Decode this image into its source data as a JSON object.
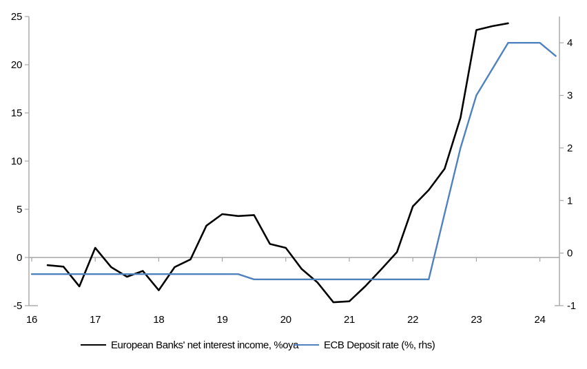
{
  "chart_data": {
    "type": "line",
    "title": "",
    "legend_position": "bottom",
    "grid": "zero-line-only",
    "background": "#ffffff",
    "x_axis": {
      "range": [
        15.96,
        24.31
      ],
      "ticks": [
        16,
        17,
        18,
        19,
        20,
        21,
        22,
        23,
        24
      ],
      "labels": [
        "16",
        "17",
        "18",
        "19",
        "20",
        "21",
        "22",
        "23",
        "24"
      ]
    },
    "left_axis": {
      "range": [
        -5,
        25
      ],
      "ticks": [
        -5,
        0,
        5,
        10,
        15,
        20,
        25
      ],
      "labels": [
        "-5",
        "0",
        "5",
        "10",
        "15",
        "20",
        "25"
      ]
    },
    "right_axis": {
      "range": [
        -1,
        4.5
      ],
      "ticks": [
        -1,
        0,
        1,
        2,
        3,
        4
      ],
      "labels": [
        "-1",
        "0",
        "1",
        "2",
        "3",
        "4"
      ]
    },
    "series": [
      {
        "name": "European Banks' net interest income, %oya",
        "axis": "left",
        "color": "#000000",
        "stroke_width": 2.6,
        "points": [
          [
            16.25,
            -0.8
          ],
          [
            16.5,
            -0.95
          ],
          [
            16.75,
            -3.0
          ],
          [
            17.0,
            1.0
          ],
          [
            17.25,
            -1.0
          ],
          [
            17.5,
            -2.0
          ],
          [
            17.75,
            -1.4
          ],
          [
            18.0,
            -3.4
          ],
          [
            18.25,
            -1.0
          ],
          [
            18.5,
            -0.2
          ],
          [
            18.75,
            3.3
          ],
          [
            19.0,
            4.5
          ],
          [
            19.25,
            4.3
          ],
          [
            19.5,
            4.4
          ],
          [
            19.75,
            1.4
          ],
          [
            20.0,
            1.0
          ],
          [
            20.25,
            -1.2
          ],
          [
            20.5,
            -2.6
          ],
          [
            20.75,
            -4.65
          ],
          [
            21.0,
            -4.55
          ],
          [
            21.25,
            -3.0
          ],
          [
            21.5,
            -1.25
          ],
          [
            21.75,
            0.55
          ],
          [
            22.0,
            5.3
          ],
          [
            22.25,
            7.0
          ],
          [
            22.5,
            9.2
          ],
          [
            22.75,
            14.5
          ],
          [
            23.0,
            23.6
          ],
          [
            23.25,
            24.0
          ],
          [
            23.5,
            24.3
          ]
        ]
      },
      {
        "name": "ECB Deposit rate (%, rhs)",
        "axis": "right",
        "color": "#4E81BD",
        "stroke_width": 2.4,
        "points": [
          [
            16.0,
            -0.4
          ],
          [
            19.25,
            -0.4
          ],
          [
            19.5,
            -0.5
          ],
          [
            22.25,
            -0.5
          ],
          [
            22.5,
            0.75
          ],
          [
            22.75,
            2.0
          ],
          [
            23.0,
            3.0
          ],
          [
            23.25,
            3.5
          ],
          [
            23.5,
            4.0
          ],
          [
            24.0,
            4.0
          ],
          [
            24.25,
            3.75
          ]
        ]
      }
    ]
  },
  "colors": {
    "axis_gray": "#A6A6A6",
    "series_black": "#000000",
    "series_blue": "#4E81BD",
    "text": "#000000"
  }
}
